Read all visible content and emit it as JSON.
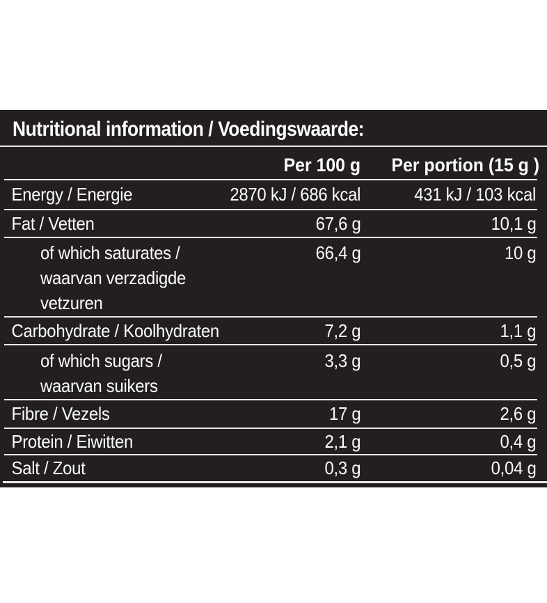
{
  "panel": {
    "title": "Nutritional information / Voedingswaarde:",
    "columns": {
      "per100": "Per 100 g",
      "portion": "Per portion (15 g )"
    },
    "rows": [
      {
        "label": "Energy / Energie",
        "per100": "2870 kJ / 686 kcal",
        "portion": "431 kJ / 103 kcal"
      },
      {
        "label": "Fat / Vetten",
        "per100": "67,6 g",
        "portion": "10,1 g"
      },
      {
        "label": "of which saturates /",
        "label_lines": [
          "waarvan verzadigde",
          "vetzuren"
        ],
        "per100": "66,4 g",
        "portion": "10 g"
      },
      {
        "label": "Carbohydrate / Koolhydraten",
        "per100": "7,2 g",
        "portion": "1,1 g"
      },
      {
        "label": "of which sugars /",
        "label_lines": [
          "waarvan suikers"
        ],
        "per100": "3,3 g",
        "portion": "0,5 g"
      },
      {
        "label": "Fibre / Vezels",
        "per100": "17 g",
        "portion": "2,6 g"
      },
      {
        "label": "Protein / Eiwitten",
        "per100": "2,1 g",
        "portion": "0,4 g"
      },
      {
        "label": "Salt / Zout",
        "per100": "0,3 g",
        "portion": "0,04 g"
      }
    ],
    "colors": {
      "background": "#231f20",
      "text": "#fbfbfb",
      "separator": "#ece9e9",
      "page_background": "#ffffff"
    }
  }
}
